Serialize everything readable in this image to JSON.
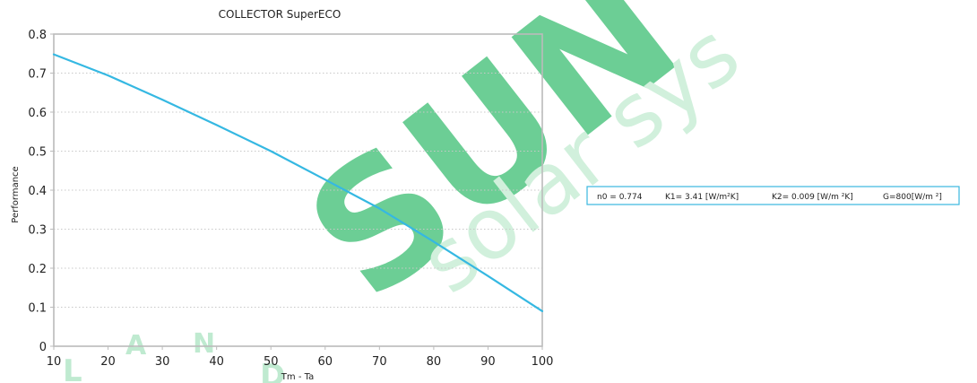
{
  "watermark": {
    "brand": "SUN",
    "sub": "solar sys",
    "letters": [
      "L",
      "A",
      "N",
      "D"
    ],
    "color": "#5cc98a"
  },
  "params": {
    "n0": "n0 = 0.774",
    "k1": "K1= 3.41 [W/m²K]",
    "k2": "K2= 0.009 [W/m ²K]",
    "g": "G=800[W/m ²]",
    "border_color": "#3ab8e0"
  },
  "chart_data": {
    "type": "line",
    "title": "COLLECTOR SuperECO",
    "xlabel": "Tm - Ta",
    "ylabel": "Performance",
    "xlim": [
      10,
      100
    ],
    "ylim": [
      0,
      0.8
    ],
    "xticks": [
      "10",
      "20",
      "30",
      "40",
      "50",
      "60",
      "70",
      "80",
      "90",
      "100"
    ],
    "yticks": [
      "0",
      "0.1",
      "0.2",
      "0.3",
      "0.4",
      "0.5",
      "0.6",
      "0.7",
      "0.8"
    ],
    "grid": true,
    "series": [
      {
        "color": "#35b8e2",
        "x": [
          10,
          20,
          30,
          40,
          50,
          60,
          70,
          80,
          90,
          100
        ],
        "y": [
          0.748,
          0.694,
          0.632,
          0.567,
          0.5,
          0.427,
          0.353,
          0.268,
          0.18,
          0.09
        ]
      }
    ]
  }
}
